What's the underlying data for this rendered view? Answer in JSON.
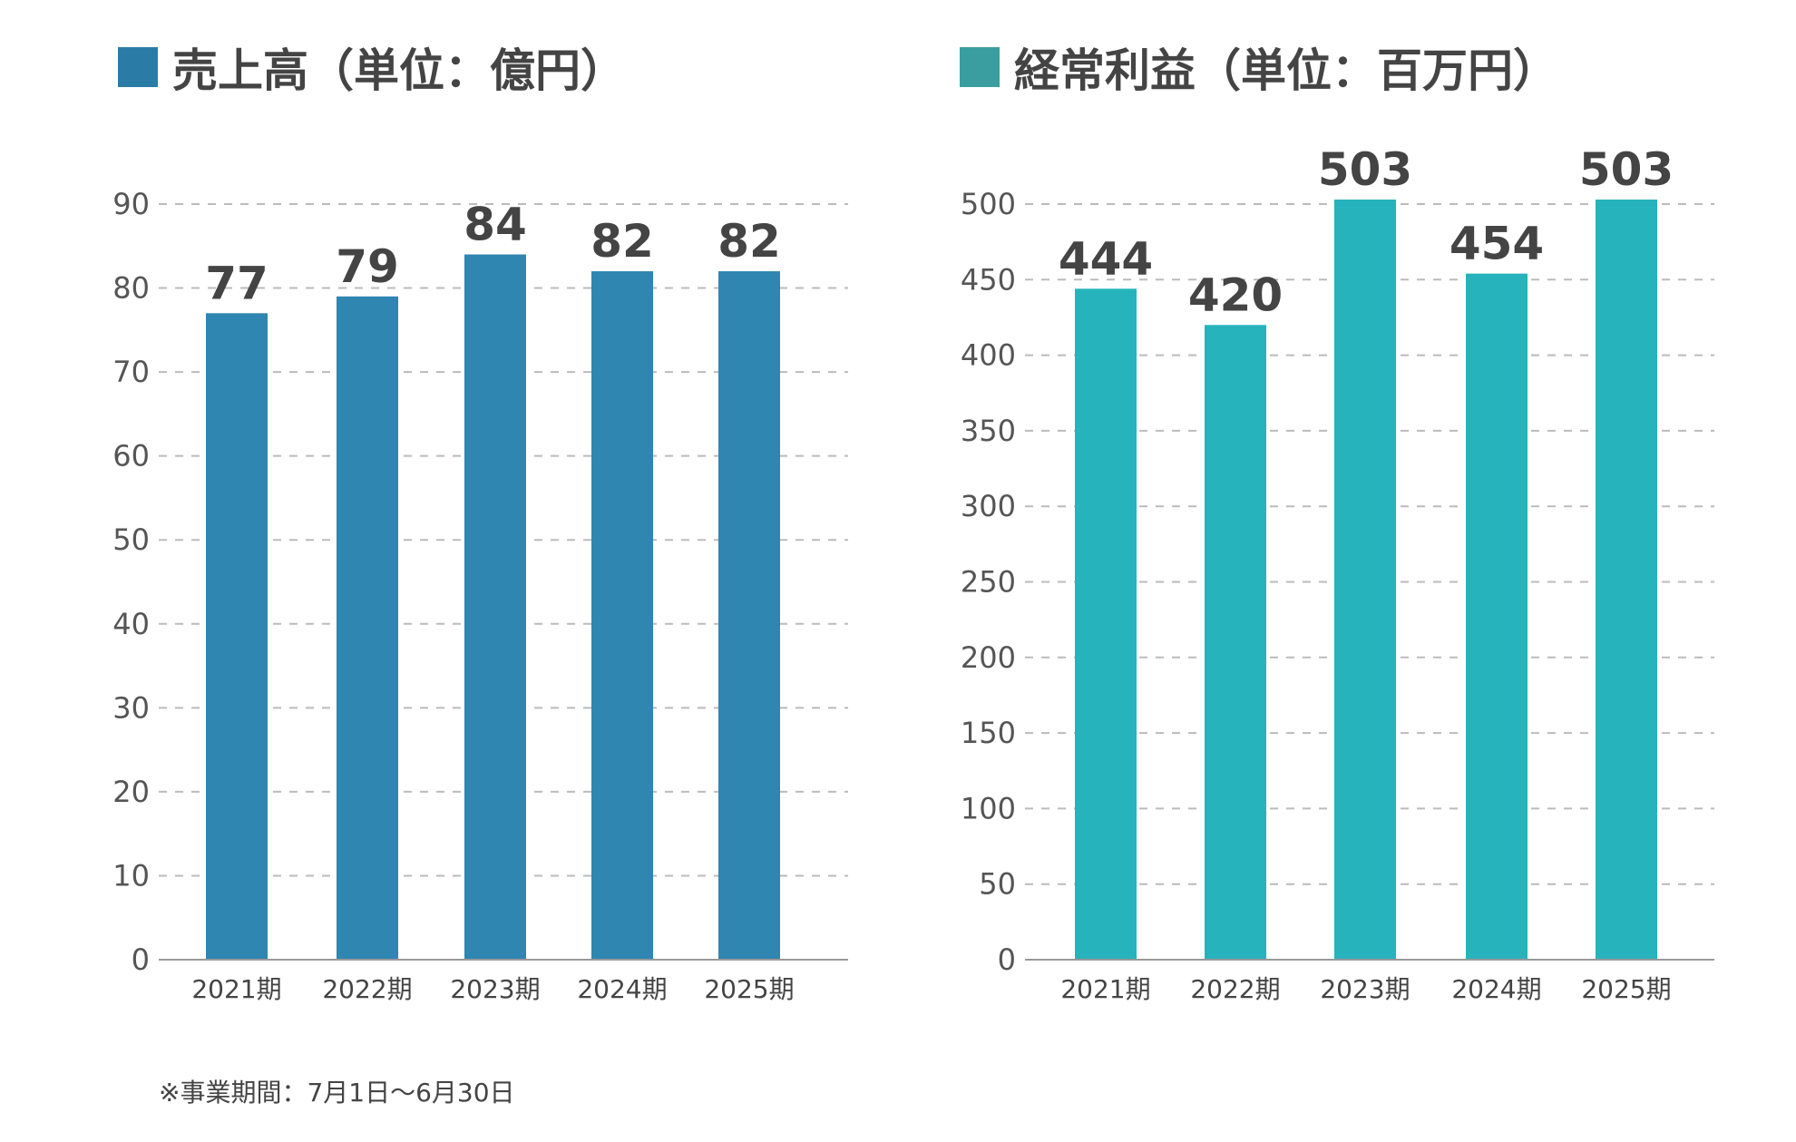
{
  "colors": {
    "revenue_bar": "#2e86b1",
    "revenue_swatch": "#2a7ca6",
    "profit_bar": "#26b3bb",
    "profit_swatch": "#3a9ea0",
    "grid": "#bbbbbb",
    "axis": "#999999"
  },
  "footnote": "※事業期間：7月1日〜6月30日",
  "chart_data": [
    {
      "type": "bar",
      "title": "売上高（単位：億円）",
      "categories": [
        "2021期",
        "2022期",
        "2023期",
        "2024期",
        "2025期"
      ],
      "values": [
        77,
        79,
        84,
        82,
        82
      ],
      "data_labels": [
        "77",
        "79",
        "84",
        "82",
        "82"
      ],
      "ylim": [
        0,
        90
      ],
      "yticks": [
        0,
        10,
        20,
        30,
        40,
        50,
        60,
        70,
        80,
        90
      ],
      "ytick_labels": [
        "0",
        "10",
        "20",
        "30",
        "40",
        "50",
        "60",
        "70",
        "80",
        "90"
      ],
      "grid": true
    },
    {
      "type": "bar",
      "title": "経常利益（単位：百万円）",
      "categories": [
        "2021期",
        "2022期",
        "2023期",
        "2024期",
        "2025期"
      ],
      "values": [
        444,
        420,
        503,
        454,
        503
      ],
      "data_labels": [
        "444",
        "420",
        "503",
        "454",
        "503"
      ],
      "ylim": [
        0,
        500
      ],
      "yticks": [
        0,
        50,
        100,
        150,
        200,
        250,
        300,
        350,
        400,
        450,
        500
      ],
      "ytick_labels": [
        "0",
        "50",
        "100",
        "150",
        "200",
        "250",
        "300",
        "350",
        "400",
        "450",
        "500"
      ],
      "grid": true
    }
  ]
}
